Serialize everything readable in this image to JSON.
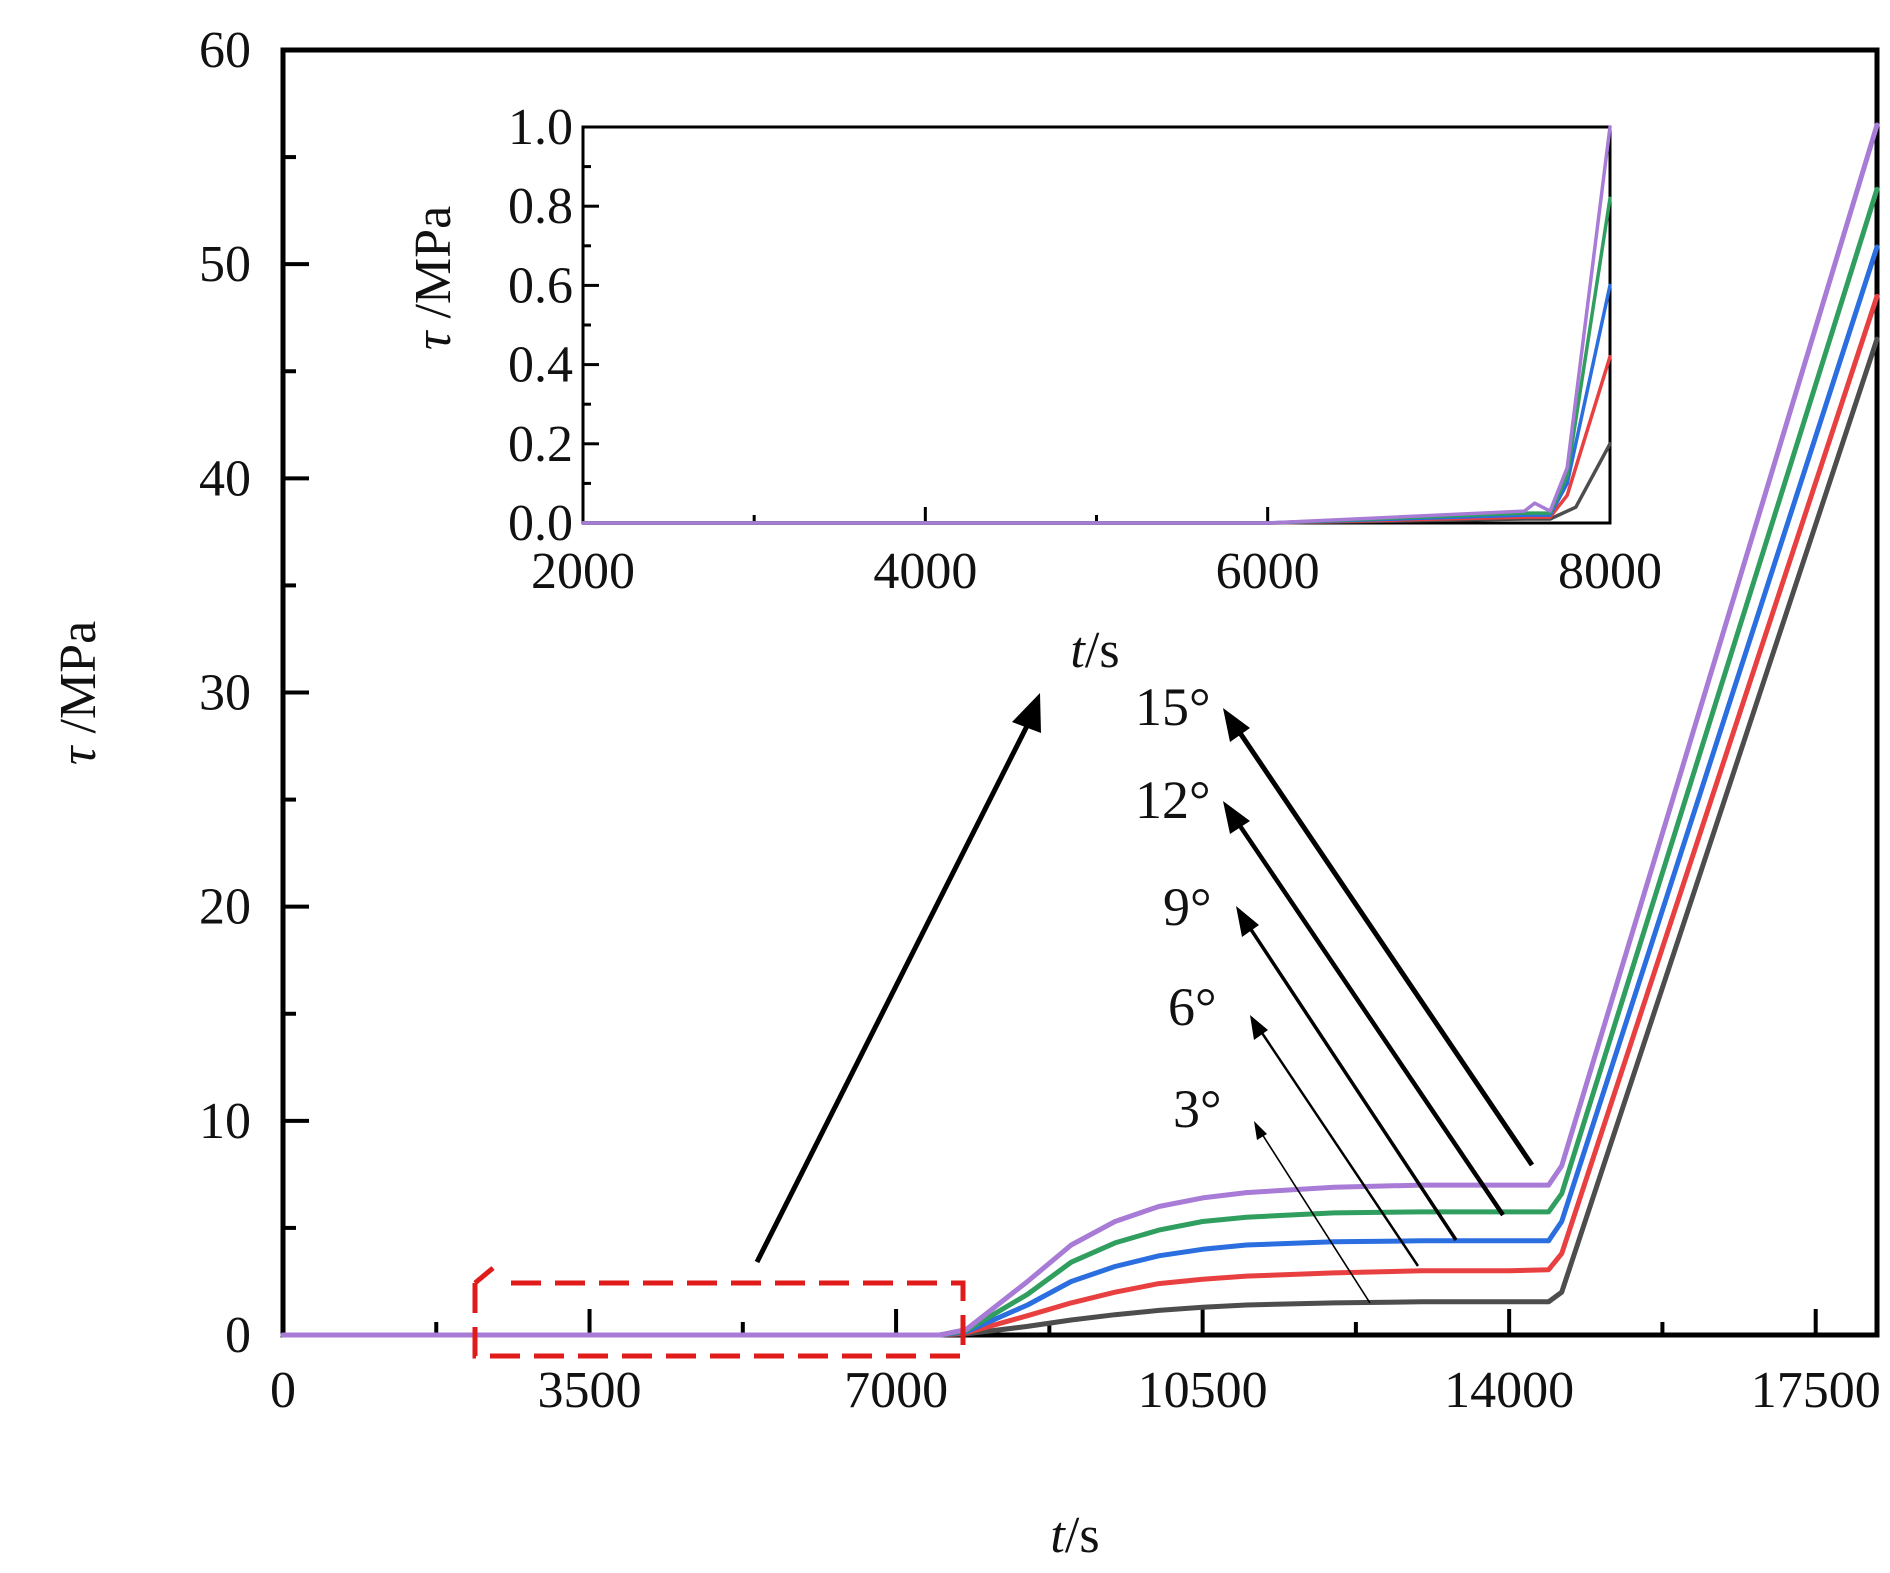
{
  "chart_data": [
    {
      "id": "main",
      "type": "line",
      "xlabel_var": "t",
      "xlabel_unit": "/s",
      "ylabel_var": "τ",
      "ylabel_unit": " /MPa",
      "xlim": [
        0,
        18200
      ],
      "ylim": [
        0,
        60
      ],
      "xticks": [
        0,
        3500,
        7000,
        10500,
        14000,
        17500
      ],
      "yticks": [
        0,
        10,
        20,
        30,
        40,
        50,
        60
      ],
      "grid": false,
      "series": [
        {
          "name": "3°",
          "color": "#4d4d4d",
          "x": [
            0,
            7500,
            7800,
            8500,
            9000,
            9500,
            10000,
            10500,
            11000,
            12000,
            13000,
            14000,
            14450,
            14600,
            18200
          ],
          "y": [
            0,
            0,
            0.05,
            0.4,
            0.7,
            0.95,
            1.15,
            1.3,
            1.4,
            1.5,
            1.55,
            1.55,
            1.55,
            2.0,
            46.5
          ]
        },
        {
          "name": "6°",
          "color": "#e84040",
          "x": [
            0,
            7500,
            7800,
            8500,
            9000,
            9500,
            10000,
            10500,
            11000,
            12000,
            13000,
            14000,
            14450,
            14600,
            18200
          ],
          "y": [
            0,
            0,
            0.1,
            0.9,
            1.5,
            2.0,
            2.4,
            2.6,
            2.75,
            2.9,
            3.0,
            3.0,
            3.05,
            3.8,
            48.5
          ]
        },
        {
          "name": "9°",
          "color": "#2a6ee0",
          "x": [
            0,
            7500,
            7800,
            8500,
            9000,
            9500,
            10000,
            10500,
            11000,
            12000,
            13000,
            14000,
            14450,
            14600,
            18200
          ],
          "y": [
            0,
            0,
            0.15,
            1.4,
            2.5,
            3.2,
            3.7,
            4.0,
            4.2,
            4.35,
            4.4,
            4.4,
            4.4,
            5.3,
            50.8
          ]
        },
        {
          "name": "12°",
          "color": "#2f9e5e",
          "x": [
            0,
            7500,
            7800,
            8500,
            9000,
            9500,
            10000,
            10500,
            11000,
            12000,
            13000,
            14000,
            14450,
            14600,
            18200
          ],
          "y": [
            0,
            0,
            0.2,
            1.9,
            3.4,
            4.3,
            4.9,
            5.3,
            5.5,
            5.7,
            5.75,
            5.75,
            5.75,
            6.6,
            53.5
          ]
        },
        {
          "name": "15°",
          "color": "#a77bd6",
          "x": [
            0,
            7500,
            7800,
            8500,
            9000,
            9500,
            10000,
            10500,
            11000,
            12000,
            13000,
            14000,
            14450,
            14600,
            18200
          ],
          "y": [
            0,
            0,
            0.25,
            2.5,
            4.2,
            5.3,
            6.0,
            6.4,
            6.65,
            6.9,
            7.0,
            7.0,
            7.0,
            7.9,
            56.5
          ]
        }
      ],
      "annotations": [
        "3°",
        "6°",
        "9°",
        "12°",
        "15°"
      ]
    },
    {
      "id": "inset",
      "type": "line",
      "xlabel_var": "t",
      "xlabel_unit": "/s",
      "ylabel_var": "τ",
      "ylabel_unit": " /MPa",
      "xlim": [
        2000,
        8000
      ],
      "ylim": [
        0,
        1.0
      ],
      "xticks": [
        2000,
        4000,
        6000,
        8000
      ],
      "yticks": [
        "0.0",
        "0.2",
        "0.4",
        "0.6",
        "0.8",
        "1.0"
      ],
      "grid": false,
      "series": [
        {
          "name": "3°",
          "color": "#4d4d4d",
          "x": [
            2000,
            6000,
            7500,
            7650,
            7800,
            8000
          ],
          "y": [
            0.0,
            0.0,
            0.01,
            0.01,
            0.04,
            0.2
          ]
        },
        {
          "name": "6°",
          "color": "#e84040",
          "x": [
            2000,
            6000,
            7500,
            7650,
            7750,
            8000
          ],
          "y": [
            0.0,
            0.0,
            0.015,
            0.015,
            0.07,
            0.42
          ]
        },
        {
          "name": "9°",
          "color": "#2a6ee0",
          "x": [
            2000,
            6000,
            7500,
            7650,
            7750,
            8000
          ],
          "y": [
            0.0,
            0.0,
            0.02,
            0.02,
            0.1,
            0.6
          ]
        },
        {
          "name": "12°",
          "color": "#2f9e5e",
          "x": [
            2000,
            6000,
            7500,
            7650,
            7750,
            8000
          ],
          "y": [
            0.0,
            0.0,
            0.025,
            0.025,
            0.12,
            0.82
          ]
        },
        {
          "name": "15°",
          "color": "#a77bd6",
          "x": [
            2000,
            6000,
            7500,
            7560,
            7650,
            7750,
            8000
          ],
          "y": [
            0.0,
            0.0,
            0.03,
            0.05,
            0.03,
            0.14,
            1.0
          ]
        }
      ]
    }
  ]
}
